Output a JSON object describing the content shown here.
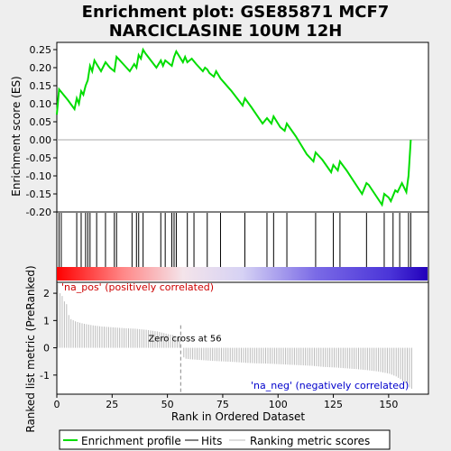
{
  "chart_data": {
    "type": "line",
    "title_line1": "Enrichment plot: GSE85871 MCF7",
    "title_line2": "NARCICLASINE 10UM 12H",
    "xlabel": "Rank in Ordered Dataset",
    "ylabel_top": "Enrichment score (ES)",
    "ylabel_bottom": "Ranked list metric (PreRanked)",
    "xlim": [
      0,
      168
    ],
    "es_ylim": [
      -0.2,
      0.27
    ],
    "metric_ylim": [
      -1.7,
      2.4
    ],
    "x_ticks": [
      0,
      25,
      50,
      75,
      100,
      125,
      150
    ],
    "es_ticks": [
      0.25,
      0.2,
      0.15,
      0.1,
      0.05,
      0.0,
      -0.05,
      -0.1,
      -0.15,
      -0.2
    ],
    "es_tick_labels": [
      "0.25",
      "0.20",
      "0.15",
      "0.10",
      "0.05",
      "0.00",
      "-0.05",
      "-0.10",
      "-0.15",
      "-0.20"
    ],
    "metric_ticks": [
      2,
      1,
      0,
      -1
    ],
    "es_curve": {
      "x": [
        0,
        1,
        3,
        5,
        8,
        9,
        10,
        11,
        12,
        13,
        14,
        15,
        16,
        17,
        18,
        20,
        22,
        24,
        26,
        27,
        30,
        33,
        35,
        36,
        37,
        38,
        39,
        40,
        45,
        47,
        48,
        49,
        52,
        53,
        54,
        55,
        57,
        58,
        59,
        61,
        63,
        66,
        67,
        68,
        69,
        71,
        72,
        74,
        79,
        84,
        85,
        88,
        93,
        95,
        97,
        98,
        101,
        103,
        104,
        108,
        113,
        116,
        117,
        120,
        124,
        125,
        127,
        128,
        131,
        138,
        140,
        141,
        147,
        148,
        150,
        151,
        153,
        154,
        156,
        158,
        159,
        160
      ],
      "y": [
        0.07,
        0.14,
        0.125,
        0.11,
        0.085,
        0.115,
        0.1,
        0.135,
        0.125,
        0.15,
        0.165,
        0.205,
        0.19,
        0.22,
        0.21,
        0.19,
        0.215,
        0.2,
        0.19,
        0.23,
        0.21,
        0.19,
        0.21,
        0.2,
        0.235,
        0.225,
        0.25,
        0.24,
        0.2,
        0.22,
        0.205,
        0.22,
        0.205,
        0.23,
        0.245,
        0.235,
        0.215,
        0.23,
        0.215,
        0.225,
        0.21,
        0.19,
        0.2,
        0.195,
        0.185,
        0.175,
        0.19,
        0.17,
        0.135,
        0.095,
        0.115,
        0.09,
        0.045,
        0.06,
        0.045,
        0.065,
        0.035,
        0.025,
        0.045,
        0.01,
        -0.04,
        -0.06,
        -0.035,
        -0.055,
        -0.09,
        -0.07,
        -0.085,
        -0.06,
        -0.085,
        -0.15,
        -0.12,
        -0.125,
        -0.18,
        -0.15,
        -0.16,
        -0.17,
        -0.14,
        -0.145,
        -0.12,
        -0.145,
        -0.1,
        0.0
      ]
    },
    "hits": [
      1,
      2,
      9,
      11,
      13,
      14,
      15,
      18,
      22,
      26,
      27,
      34,
      36,
      37,
      39,
      47,
      49,
      52,
      53,
      54,
      59,
      62,
      68,
      74,
      85,
      95,
      98,
      104,
      117,
      125,
      128,
      140,
      148,
      152,
      155,
      159,
      160
    ],
    "metric_points": [
      [
        0,
        2.35
      ],
      [
        1,
        2.0
      ],
      [
        2,
        1.9
      ],
      [
        3,
        1.7
      ],
      [
        4,
        1.6
      ],
      [
        5,
        1.2
      ],
      [
        6,
        1.05
      ],
      [
        8,
        0.97
      ],
      [
        10,
        0.92
      ],
      [
        12,
        0.88
      ],
      [
        14,
        0.85
      ],
      [
        16,
        0.82
      ],
      [
        20,
        0.78
      ],
      [
        25,
        0.75
      ],
      [
        30,
        0.72
      ],
      [
        35,
        0.7
      ],
      [
        40,
        0.66
      ],
      [
        45,
        0.6
      ],
      [
        50,
        0.5
      ],
      [
        53,
        0.45
      ],
      [
        55,
        0.3
      ],
      [
        56,
        0.0
      ],
      [
        57,
        -0.35
      ],
      [
        58,
        -0.4
      ],
      [
        60,
        -0.42
      ],
      [
        65,
        -0.45
      ],
      [
        70,
        -0.48
      ],
      [
        75,
        -0.5
      ],
      [
        80,
        -0.52
      ],
      [
        85,
        -0.55
      ],
      [
        90,
        -0.57
      ],
      [
        95,
        -0.58
      ],
      [
        100,
        -0.6
      ],
      [
        105,
        -0.62
      ],
      [
        110,
        -0.64
      ],
      [
        115,
        -0.66
      ],
      [
        120,
        -0.7
      ],
      [
        125,
        -0.72
      ],
      [
        130,
        -0.75
      ],
      [
        135,
        -0.78
      ],
      [
        140,
        -0.82
      ],
      [
        145,
        -0.87
      ],
      [
        150,
        -0.95
      ],
      [
        153,
        -1.05
      ],
      [
        155,
        -1.15
      ],
      [
        157,
        -1.3
      ],
      [
        159,
        -1.45
      ],
      [
        160,
        -1.5
      ]
    ],
    "zero_cross_rank": 56,
    "zero_cross_label": "Zero cross at 56",
    "pos_label": "'na_pos' (positively correlated)",
    "neg_label": "'na_neg' (negatively correlated)",
    "colors": {
      "es_line": "#00dd00",
      "hits": "#000000",
      "metric": "#bbbbbb",
      "pos_text": "#cc0000",
      "neg_text": "#0000cc",
      "heat_pos": "#ff0000",
      "heat_neg": "#2200cc"
    },
    "legend": [
      {
        "label": "Enrichment profile",
        "color": "#00dd00",
        "kind": "line"
      },
      {
        "label": "Hits",
        "color": "#000000",
        "kind": "line"
      },
      {
        "label": "Ranking metric scores",
        "color": "#bbbbbb",
        "kind": "line"
      }
    ],
    "legend_placement": "bottom"
  }
}
